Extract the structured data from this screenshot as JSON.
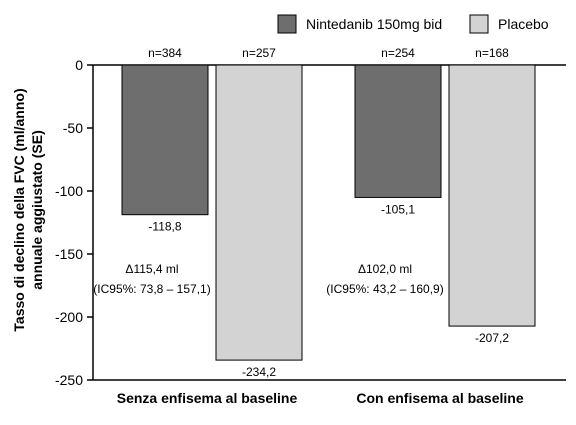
{
  "chart_data": {
    "type": "bar",
    "title": "",
    "ylabel_lines": [
      "Tasso di declino della FVC (ml/anno)",
      "annuale aggiustato (SE)"
    ],
    "ylim": [
      -250,
      0
    ],
    "yticks": [
      0,
      -50,
      -100,
      -150,
      -200,
      -250
    ],
    "grid": false,
    "legend_position": "top-right",
    "categories": [
      "Senza enfisema al baseline",
      "Con enfisema al baseline"
    ],
    "series": [
      {
        "name": "Nintedanib 150mg bid",
        "color": "#6e6e6e",
        "values": [
          -118.8,
          -105.1
        ],
        "value_labels": [
          "-118,8",
          "-105,1"
        ],
        "n_labels": [
          "n=384",
          "n=254"
        ]
      },
      {
        "name": "Placebo",
        "color": "#d3d3d3",
        "values": [
          -234.2,
          -207.2
        ],
        "value_labels": [
          "-234,2",
          "-207,2"
        ],
        "n_labels": [
          "n=257",
          "n=168"
        ]
      }
    ],
    "annotations": [
      {
        "line1": "Δ115,4 ml",
        "line2": "(IC95%: 73,8 – 157,1)"
      },
      {
        "line1": "Δ102,0 ml",
        "line2": "(IC95%: 43,2 – 160,9)"
      }
    ]
  }
}
